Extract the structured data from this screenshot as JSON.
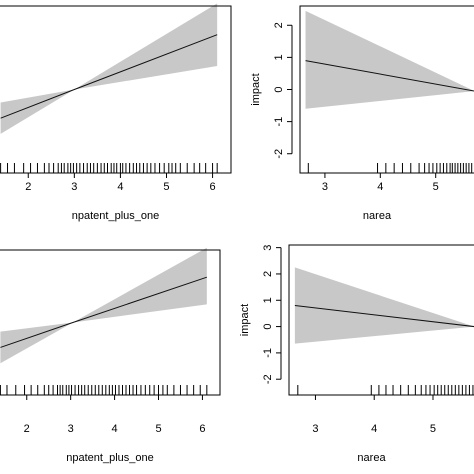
{
  "chart_data": [
    {
      "type": "line",
      "xlabel": "npatent_plus_one",
      "ylabel": "",
      "xticks": [
        2,
        3,
        4,
        5,
        6
      ],
      "xlim": [
        1.3,
        6.4
      ],
      "ylim": [
        -1.6,
        1.6
      ],
      "x": [
        1.4,
        3.0,
        6.1
      ],
      "fit": [
        -0.55,
        0.0,
        1.05
      ],
      "lower": [
        -0.85,
        0.0,
        0.45
      ],
      "upper": [
        -0.25,
        0.0,
        1.65
      ],
      "rug": [
        1.4,
        1.55,
        1.7,
        1.9,
        2.05,
        2.2,
        2.35,
        2.45,
        2.55,
        2.65,
        2.72,
        2.78,
        2.86,
        2.92,
        2.98,
        3.05,
        3.12,
        3.2,
        3.28,
        3.35,
        3.42,
        3.5,
        3.58,
        3.65,
        3.72,
        3.8,
        3.86,
        3.92,
        4.0,
        4.05,
        4.12,
        4.2,
        4.28,
        4.35,
        4.42,
        4.5,
        4.58,
        4.66,
        4.75,
        4.85,
        4.95,
        5.05,
        5.12,
        5.2,
        5.3,
        5.45,
        5.6,
        5.72,
        5.85,
        6.0,
        6.1
      ]
    },
    {
      "type": "line",
      "xlabel": "narea",
      "ylabel": "impact",
      "xticks": [
        3,
        4,
        5
      ],
      "yticks": [
        -2,
        -1,
        0,
        1,
        2
      ],
      "xlim": [
        2.55,
        5.8
      ],
      "ylim": [
        -2.6,
        2.6
      ],
      "x": [
        2.65,
        5.7
      ],
      "fit": [
        0.9,
        -0.05
      ],
      "lower": [
        -0.6,
        -0.05
      ],
      "upper": [
        2.45,
        -0.05
      ],
      "rug": [
        2.7,
        3.95,
        4.1,
        4.25,
        4.4,
        4.55,
        4.7,
        4.8,
        4.88,
        4.95,
        5.02,
        5.08,
        5.14,
        5.2,
        5.26,
        5.3,
        5.35,
        5.4,
        5.45,
        5.5,
        5.55,
        5.6,
        5.65
      ]
    },
    {
      "type": "line",
      "xlabel": "npatent_plus_one",
      "ylabel": "",
      "xticks": [
        2,
        3,
        4,
        5,
        6
      ],
      "xlim": [
        1.3,
        6.4
      ],
      "ylim": [
        -1.6,
        1.6
      ],
      "x": [
        1.4,
        3.05,
        6.1
      ],
      "fit": [
        -0.55,
        0.0,
        1.0
      ],
      "lower": [
        -0.9,
        0.0,
        0.4
      ],
      "upper": [
        -0.2,
        0.0,
        1.65
      ],
      "rug": [
        1.4,
        1.55,
        1.75,
        1.95,
        2.1,
        2.25,
        2.4,
        2.5,
        2.6,
        2.7,
        2.76,
        2.82,
        2.9,
        2.96,
        3.02,
        3.1,
        3.18,
        3.25,
        3.32,
        3.4,
        3.48,
        3.56,
        3.64,
        3.72,
        3.8,
        3.88,
        3.95,
        4.02,
        4.1,
        4.18,
        4.26,
        4.34,
        4.42,
        4.5,
        4.6,
        4.7,
        4.8,
        4.9,
        5.0,
        5.1,
        5.2,
        5.35,
        5.5,
        5.65,
        5.8,
        5.95,
        6.1
      ]
    },
    {
      "type": "line",
      "xlabel": "narea",
      "ylabel": "impact",
      "xticks": [
        3,
        4,
        5
      ],
      "yticks": [
        -2,
        -1,
        0,
        1,
        2,
        3
      ],
      "xlim": [
        2.55,
        5.8
      ],
      "ylim": [
        -2.6,
        3.1
      ],
      "x": [
        2.65,
        5.7
      ],
      "fit": [
        0.8,
        0.0
      ],
      "lower": [
        -0.65,
        0.0
      ],
      "upper": [
        2.25,
        0.0
      ],
      "rug": [
        2.7,
        3.95,
        4.08,
        4.2,
        4.32,
        4.45,
        4.58,
        4.7,
        4.8,
        4.88,
        4.95,
        5.02,
        5.08,
        5.14,
        5.2,
        5.26,
        5.32,
        5.38,
        5.44,
        5.5,
        5.56,
        5.62,
        5.68
      ]
    }
  ]
}
